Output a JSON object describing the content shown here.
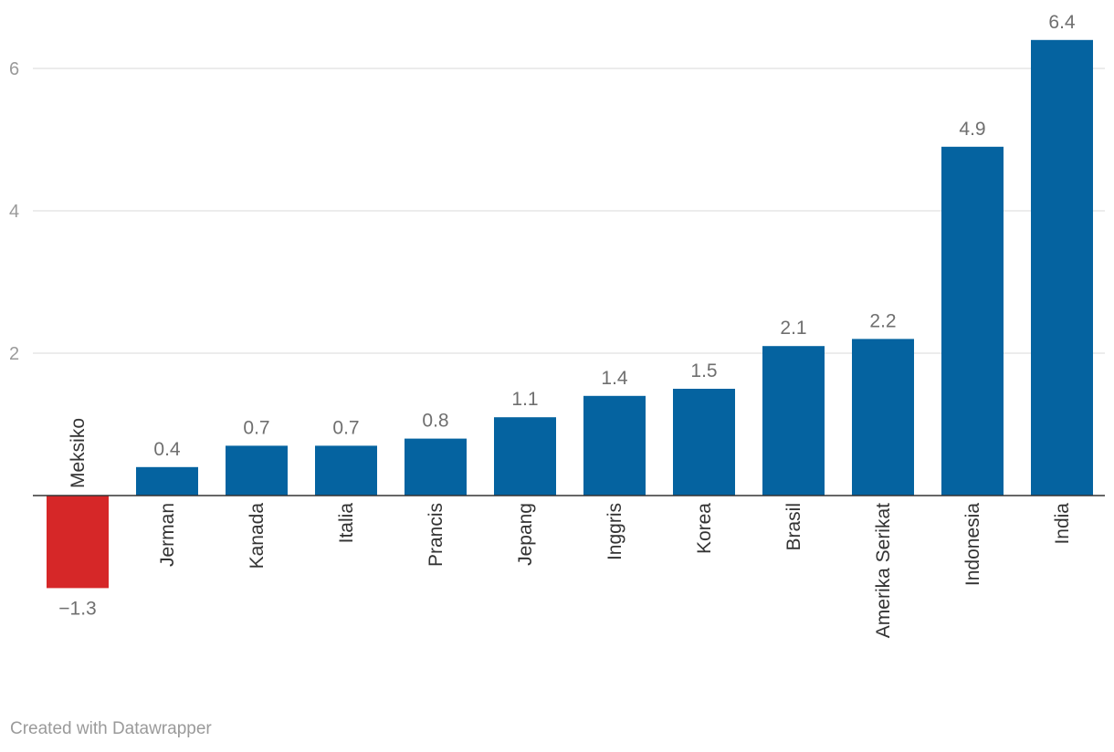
{
  "footer": {
    "credit": "Created with Datawrapper"
  },
  "colors": {
    "positive": "#0563a0",
    "negative": "#d62728",
    "grid": "#e6e6e6",
    "baseline": "#333333"
  },
  "chart_data": {
    "type": "bar",
    "categories": [
      "Meksiko",
      "Jerman",
      "Kanada",
      "Italia",
      "Prancis",
      "Jepang",
      "Inggris",
      "Korea",
      "Brasil",
      "Amerika Serikat",
      "Indonesia",
      "India"
    ],
    "values": [
      -1.3,
      0.4,
      0.7,
      0.7,
      0.8,
      1.1,
      1.4,
      1.5,
      2.1,
      2.2,
      4.9,
      6.4
    ],
    "value_labels": [
      "−1.3",
      "0.4",
      "0.7",
      "0.7",
      "0.8",
      "1.1",
      "1.4",
      "1.5",
      "2.1",
      "2.2",
      "4.9",
      "6.4"
    ],
    "y_ticks": [
      2,
      4,
      6
    ],
    "y_tick_labels": [
      "2",
      "4",
      "6"
    ],
    "ylim": [
      -1.3,
      6.4
    ],
    "grid": true,
    "legend": "none",
    "title": "",
    "xlabel": "",
    "ylabel": ""
  }
}
